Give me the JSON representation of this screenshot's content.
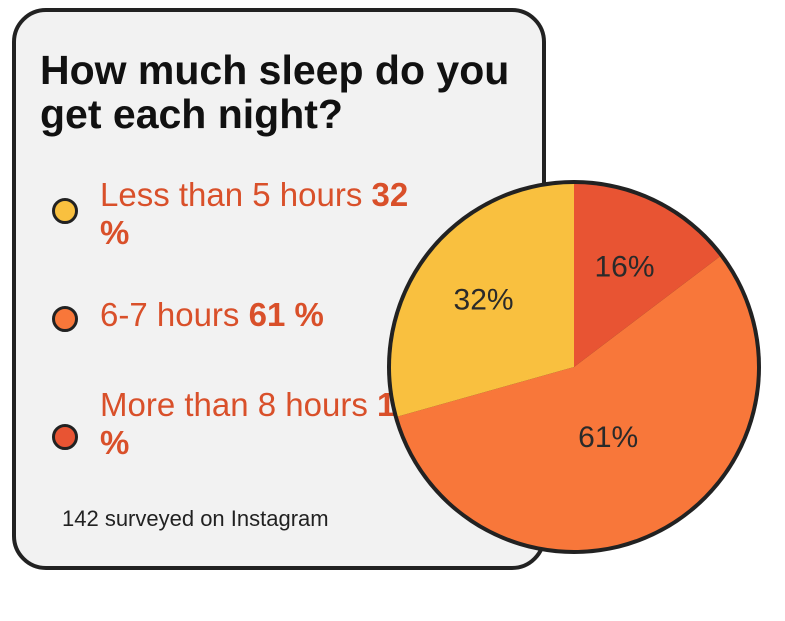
{
  "chart_data": {
    "type": "pie",
    "title": "How much sleep do you get each night?",
    "slices": [
      {
        "label": "Less than 5 hours",
        "value": 32,
        "display": "32%",
        "legend_pct": "32 %",
        "color": "#f9c03f"
      },
      {
        "label": "6-7 hours",
        "value": 61,
        "display": "61%",
        "legend_pct": "61 %",
        "color": "#f8773a"
      },
      {
        "label": "More than 8 hours",
        "value": 16,
        "display": "16%",
        "legend_pct": "16 %",
        "color": "#e85433"
      }
    ],
    "legend_placement": "left"
  },
  "legend": {
    "items": [
      {
        "text": "Less than 5 hours",
        "pct": "32 %",
        "color": "#f9c03f"
      },
      {
        "text": "6-7 hours",
        "pct": "61 %",
        "color": "#f8773a"
      },
      {
        "text": "More than 8 hours",
        "pct": "16 %",
        "color": "#e85433"
      }
    ]
  },
  "footnote": "142 surveyed on Instagram",
  "colors": {
    "label_accent": "#d9502a",
    "outline": "#222222",
    "card_bg": "#f2f2f2"
  }
}
